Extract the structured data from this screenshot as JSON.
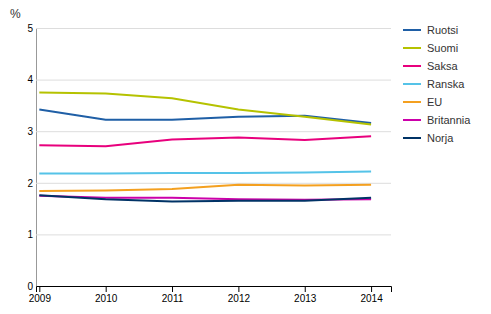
{
  "chart_data": {
    "type": "line",
    "y_label": "%",
    "x": [
      2009,
      2010,
      2011,
      2012,
      2013,
      2014
    ],
    "series": [
      {
        "name": "Ruotsi",
        "color": "#1f5fa6",
        "values": [
          3.42,
          3.22,
          3.22,
          3.28,
          3.3,
          3.16
        ]
      },
      {
        "name": "Suomi",
        "color": "#b5c200",
        "values": [
          3.75,
          3.73,
          3.64,
          3.42,
          3.28,
          3.13
        ]
      },
      {
        "name": "Saksa",
        "color": "#e8007d",
        "values": [
          2.73,
          2.71,
          2.84,
          2.88,
          2.83,
          2.9
        ]
      },
      {
        "name": "Ranska",
        "color": "#55c3e8",
        "values": [
          2.18,
          2.18,
          2.19,
          2.19,
          2.2,
          2.22
        ]
      },
      {
        "name": "EU",
        "color": "#f4a020",
        "values": [
          1.84,
          1.85,
          1.88,
          1.96,
          1.95,
          1.96
        ]
      },
      {
        "name": "Britannia",
        "color": "#cc00aa",
        "values": [
          1.75,
          1.71,
          1.71,
          1.68,
          1.67,
          1.68
        ]
      },
      {
        "name": "Norja",
        "color": "#003366",
        "values": [
          1.76,
          1.68,
          1.64,
          1.65,
          1.65,
          1.71
        ]
      }
    ],
    "xlim": [
      2008.95,
      2014.3
    ],
    "xticks": [
      2009,
      2010,
      2011,
      2012,
      2013,
      2014
    ],
    "ylim": [
      0,
      5
    ],
    "yticks": [
      0,
      1,
      2,
      3,
      4,
      5
    ],
    "grid": true,
    "legend": "right"
  }
}
